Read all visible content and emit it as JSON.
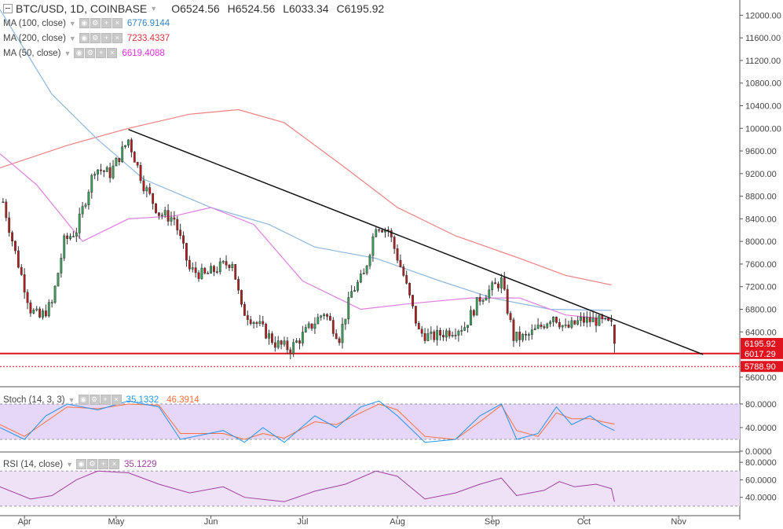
{
  "header": {
    "symbol": "BTC/USD, 1D, COINBASE",
    "open": "O6524.56",
    "high": "H6524.56",
    "low": "L6033.34",
    "close": "C6195.92"
  },
  "indicators": [
    {
      "label": "MA (100, close)",
      "value": "6776.9144",
      "color": "#3a86c8"
    },
    {
      "label": "MA (200, close)",
      "value": "7233.4337",
      "color": "#e0343a"
    },
    {
      "label": "MA (50, close)",
      "value": "6619.4088",
      "color": "#e62fe6"
    }
  ],
  "stoch": {
    "label": "Stoch (14, 3, 3)",
    "k": "35.1332",
    "d": "46.3914",
    "k_color": "#2196f3",
    "d_color": "#ff7043"
  },
  "rsi": {
    "label": "RSI (14, close)",
    "value": "35.1229",
    "color": "#a040a0"
  },
  "price_axis": {
    "ticks": [
      "12000.00",
      "11600.00",
      "11200.00",
      "10800.00",
      "10400.00",
      "10000.00",
      "9600.00",
      "9200.00",
      "8800.00",
      "8400.00",
      "8000.00",
      "7600.00",
      "7200.00",
      "6800.00",
      "6400.00",
      "5600.00"
    ],
    "labels": [
      {
        "text": "6195.92",
        "bg": "#e0141e"
      },
      {
        "text": "6017.29",
        "bg": "#e0141e"
      },
      {
        "text": "5788.90",
        "bg": "#e0141e"
      }
    ]
  },
  "stoch_axis": {
    "ticks": [
      "80.0000",
      "40.0000",
      "0.0000"
    ]
  },
  "rsi_axis": {
    "ticks": [
      "80.0000",
      "60.0000",
      "40.0000"
    ]
  },
  "time_axis": {
    "labels": [
      "Apr",
      "May",
      "Jun",
      "Jul",
      "Aug",
      "Sep",
      "Oct",
      "Nov"
    ]
  },
  "chart_data": {
    "type": "candlestick",
    "title": "BTC/USD, 1D, COINBASE",
    "ylim": [
      5500,
      12200
    ],
    "x_start": "2018-03-24",
    "x_end": "2018-11-21",
    "horizontal_levels": [
      6017.29,
      5788.9
    ],
    "trendline": {
      "from": [
        "2018-05-05",
        9980
      ],
      "to": [
        "2018-11-09",
        6000
      ]
    },
    "candle_anchors": [
      [
        "2018-03-25",
        8700
      ],
      [
        "2018-03-29",
        7800
      ],
      [
        "2018-04-03",
        6800
      ],
      [
        "2018-04-06",
        6650
      ],
      [
        "2018-04-10",
        6900
      ],
      [
        "2018-04-14",
        8000
      ],
      [
        "2018-04-18",
        8200
      ],
      [
        "2018-04-24",
        9300
      ],
      [
        "2018-04-29",
        9200
      ],
      [
        "2018-05-05",
        9800
      ],
      [
        "2018-05-10",
        9000
      ],
      [
        "2018-05-15",
        8500
      ],
      [
        "2018-05-20",
        8400
      ],
      [
        "2018-05-25",
        7500
      ],
      [
        "2018-05-30",
        7400
      ],
      [
        "2018-06-04",
        7550
      ],
      [
        "2018-06-08",
        7650
      ],
      [
        "2018-06-11",
        6800
      ],
      [
        "2018-06-17",
        6500
      ],
      [
        "2018-06-22",
        6200
      ],
      [
        "2018-06-27",
        6100
      ],
      [
        "2018-07-02",
        6400
      ],
      [
        "2018-07-08",
        6750
      ],
      [
        "2018-07-13",
        6300
      ],
      [
        "2018-07-17",
        7100
      ],
      [
        "2018-07-21",
        7400
      ],
      [
        "2018-07-25",
        8300
      ],
      [
        "2018-07-29",
        8200
      ],
      [
        "2018-08-03",
        7400
      ],
      [
        "2018-08-08",
        6400
      ],
      [
        "2018-08-12",
        6300
      ],
      [
        "2018-08-17",
        6400
      ],
      [
        "2018-08-23",
        6500
      ],
      [
        "2018-08-28",
        7000
      ],
      [
        "2018-09-04",
        7300
      ],
      [
        "2018-09-08",
        6300
      ],
      [
        "2018-09-12",
        6300
      ],
      [
        "2018-09-17",
        6500
      ],
      [
        "2018-09-21",
        6700
      ],
      [
        "2018-09-25",
        6450
      ],
      [
        "2018-09-30",
        6600
      ],
      [
        "2018-10-05",
        6600
      ],
      [
        "2018-10-10",
        6520
      ],
      [
        "2018-10-11",
        6196
      ]
    ],
    "ma100": [
      [
        "2018-03-24",
        12100
      ],
      [
        "2018-04-10",
        10600
      ],
      [
        "2018-04-25",
        9800
      ],
      [
        "2018-05-10",
        9100
      ],
      [
        "2018-06-01",
        8600
      ],
      [
        "2018-06-20",
        8300
      ],
      [
        "2018-07-05",
        7900
      ],
      [
        "2018-07-25",
        7700
      ],
      [
        "2018-08-15",
        7300
      ],
      [
        "2018-09-01",
        7000
      ],
      [
        "2018-09-20",
        6800
      ],
      [
        "2018-10-10",
        6780
      ]
    ],
    "ma200": [
      [
        "2018-03-24",
        9300
      ],
      [
        "2018-04-15",
        9700
      ],
      [
        "2018-05-05",
        10000
      ],
      [
        "2018-05-25",
        10250
      ],
      [
        "2018-06-10",
        10330
      ],
      [
        "2018-06-25",
        10100
      ],
      [
        "2018-07-15",
        9300
      ],
      [
        "2018-08-01",
        8600
      ],
      [
        "2018-08-20",
        8100
      ],
      [
        "2018-09-10",
        7700
      ],
      [
        "2018-09-25",
        7400
      ],
      [
        "2018-10-10",
        7230
      ]
    ],
    "ma50": [
      [
        "2018-03-24",
        9550
      ],
      [
        "2018-04-05",
        9000
      ],
      [
        "2018-04-20",
        8000
      ],
      [
        "2018-05-05",
        8400
      ],
      [
        "2018-05-20",
        8450
      ],
      [
        "2018-06-01",
        8600
      ],
      [
        "2018-06-15",
        8300
      ],
      [
        "2018-07-01",
        7300
      ],
      [
        "2018-07-20",
        6800
      ],
      [
        "2018-08-05",
        6900
      ],
      [
        "2018-08-25",
        7000
      ],
      [
        "2018-09-10",
        7000
      ],
      [
        "2018-09-25",
        6700
      ],
      [
        "2018-10-10",
        6620
      ]
    ],
    "stoch_k": [
      [
        "2018-03-24",
        40
      ],
      [
        "2018-04-01",
        20
      ],
      [
        "2018-04-08",
        60
      ],
      [
        "2018-04-15",
        80
      ],
      [
        "2018-04-25",
        70
      ],
      [
        "2018-05-05",
        85
      ],
      [
        "2018-05-15",
        75
      ],
      [
        "2018-05-22",
        20
      ],
      [
        "2018-06-05",
        35
      ],
      [
        "2018-06-12",
        15
      ],
      [
        "2018-06-18",
        40
      ],
      [
        "2018-06-25",
        15
      ],
      [
        "2018-07-05",
        60
      ],
      [
        "2018-07-12",
        40
      ],
      [
        "2018-07-20",
        75
      ],
      [
        "2018-07-26",
        85
      ],
      [
        "2018-08-01",
        60
      ],
      [
        "2018-08-10",
        15
      ],
      [
        "2018-08-20",
        20
      ],
      [
        "2018-08-28",
        60
      ],
      [
        "2018-09-04",
        80
      ],
      [
        "2018-09-09",
        20
      ],
      [
        "2018-09-16",
        30
      ],
      [
        "2018-09-22",
        75
      ],
      [
        "2018-09-27",
        45
      ],
      [
        "2018-10-03",
        60
      ],
      [
        "2018-10-07",
        45
      ],
      [
        "2018-10-11",
        35
      ]
    ],
    "stoch_d": [
      [
        "2018-03-24",
        45
      ],
      [
        "2018-04-01",
        25
      ],
      [
        "2018-04-08",
        50
      ],
      [
        "2018-04-15",
        75
      ],
      [
        "2018-04-25",
        72
      ],
      [
        "2018-05-05",
        80
      ],
      [
        "2018-05-15",
        78
      ],
      [
        "2018-05-22",
        30
      ],
      [
        "2018-06-05",
        30
      ],
      [
        "2018-06-12",
        20
      ],
      [
        "2018-06-18",
        30
      ],
      [
        "2018-06-25",
        22
      ],
      [
        "2018-07-05",
        50
      ],
      [
        "2018-07-12",
        45
      ],
      [
        "2018-07-20",
        65
      ],
      [
        "2018-07-26",
        80
      ],
      [
        "2018-08-01",
        70
      ],
      [
        "2018-08-10",
        25
      ],
      [
        "2018-08-20",
        20
      ],
      [
        "2018-08-28",
        50
      ],
      [
        "2018-09-04",
        78
      ],
      [
        "2018-09-09",
        35
      ],
      [
        "2018-09-16",
        25
      ],
      [
        "2018-09-22",
        65
      ],
      [
        "2018-09-27",
        55
      ],
      [
        "2018-10-03",
        55
      ],
      [
        "2018-10-07",
        50
      ],
      [
        "2018-10-11",
        46
      ]
    ],
    "rsi": [
      [
        "2018-03-24",
        52
      ],
      [
        "2018-04-03",
        38
      ],
      [
        "2018-04-10",
        42
      ],
      [
        "2018-04-18",
        60
      ],
      [
        "2018-04-25",
        70
      ],
      [
        "2018-05-05",
        68
      ],
      [
        "2018-05-15",
        55
      ],
      [
        "2018-05-25",
        45
      ],
      [
        "2018-06-05",
        52
      ],
      [
        "2018-06-12",
        40
      ],
      [
        "2018-06-25",
        35
      ],
      [
        "2018-07-05",
        47
      ],
      [
        "2018-07-15",
        55
      ],
      [
        "2018-07-25",
        70
      ],
      [
        "2018-08-01",
        64
      ],
      [
        "2018-08-10",
        38
      ],
      [
        "2018-08-20",
        45
      ],
      [
        "2018-08-28",
        55
      ],
      [
        "2018-09-04",
        62
      ],
      [
        "2018-09-09",
        42
      ],
      [
        "2018-09-18",
        48
      ],
      [
        "2018-09-23",
        58
      ],
      [
        "2018-09-28",
        52
      ],
      [
        "2018-10-05",
        55
      ],
      [
        "2018-10-10",
        50
      ],
      [
        "2018-10-11",
        35
      ]
    ]
  }
}
